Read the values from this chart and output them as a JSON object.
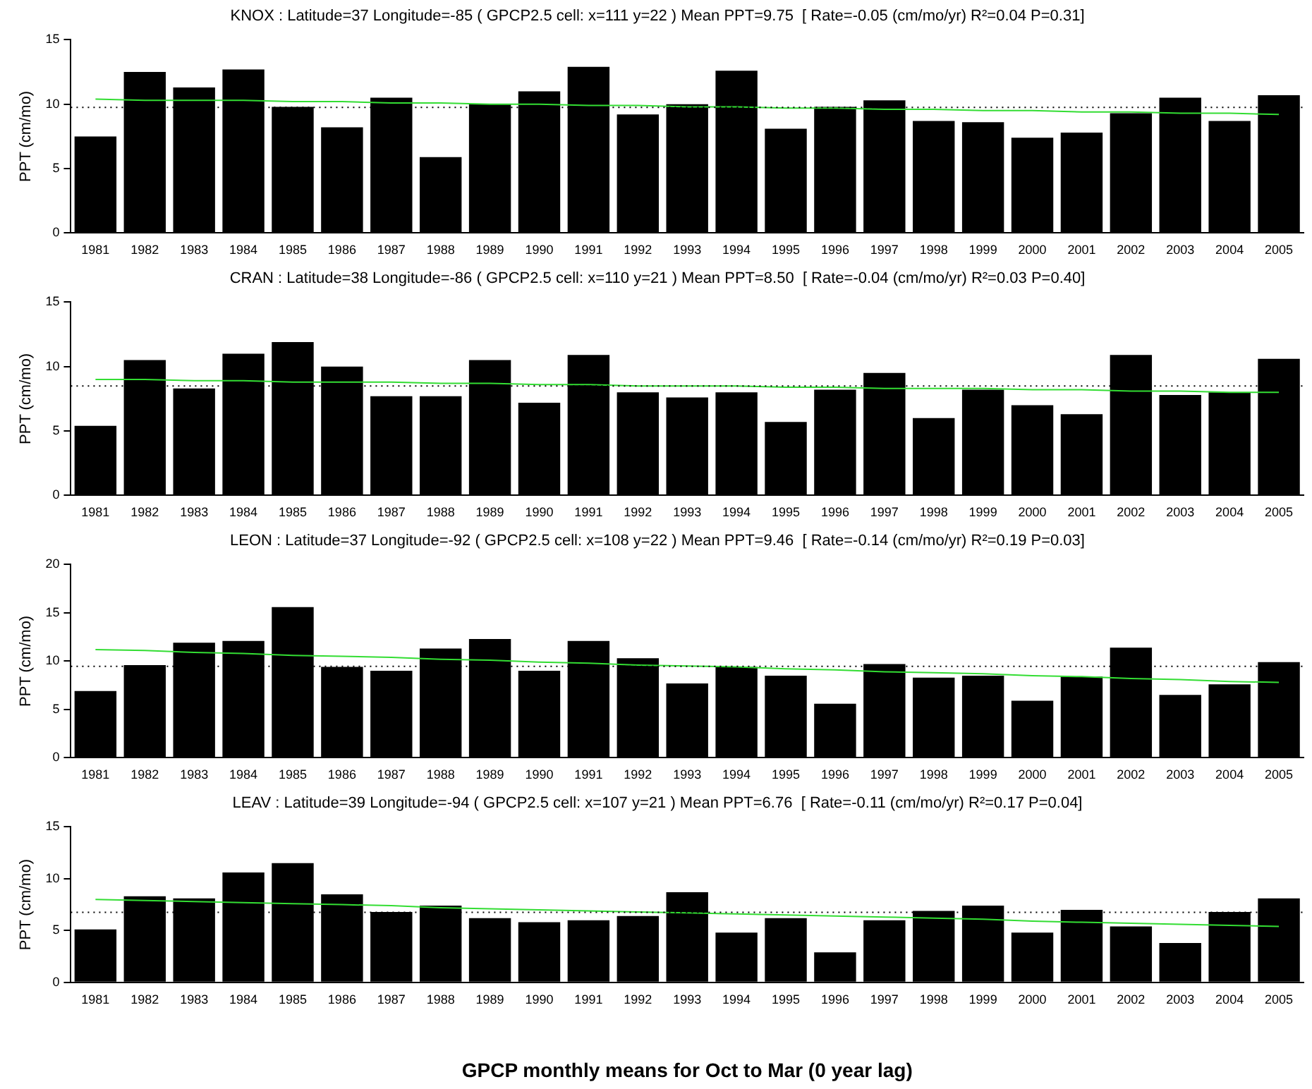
{
  "chart_data": [
    {
      "type": "bar",
      "title": "KNOX : Latitude=37 Longitude=-85 ( GPCP2.5 cell: x=111 y=22 ) Mean PPT=9.75  [ Rate=-0.05 (cm/mo/yr) R²=0.04 P=0.31]",
      "ylabel": "PPT (cm/mo)",
      "categories": [
        "1981",
        "1982",
        "1983",
        "1984",
        "1985",
        "1986",
        "1987",
        "1988",
        "1989",
        "1990",
        "1991",
        "1992",
        "1993",
        "1994",
        "1995",
        "1996",
        "1997",
        "1998",
        "1999",
        "2000",
        "2001",
        "2002",
        "2003",
        "2004",
        "2005"
      ],
      "series": [
        {
          "color": "#000000",
          "values": [
            7.5,
            12.5,
            11.3,
            12.7,
            9.8,
            8.2,
            10.5,
            5.9,
            10.0,
            11.0,
            12.9,
            9.2,
            10.0,
            12.6,
            8.1,
            9.8,
            10.3,
            8.7,
            8.6,
            7.4,
            7.8,
            9.3,
            10.5,
            8.7,
            10.7
          ]
        },
        {
          "type": "line",
          "color": "#33dd33",
          "values": [
            10.4,
            10.3,
            10.3,
            10.3,
            10.2,
            10.2,
            10.1,
            10.1,
            10.0,
            10.0,
            9.9,
            9.9,
            9.8,
            9.8,
            9.7,
            9.7,
            9.6,
            9.6,
            9.5,
            9.5,
            9.4,
            9.4,
            9.3,
            9.3,
            9.2
          ]
        }
      ],
      "ylim": [
        0,
        15
      ],
      "yticks": [
        0,
        5,
        10,
        15
      ],
      "marker": "none",
      "legend": false,
      "grid": false,
      "ref_lines": [
        {
          "axis": "y",
          "value": 9.75,
          "color": "#000000",
          "line_style": "dotted"
        }
      ]
    },
    {
      "type": "bar",
      "title": "CRAN : Latitude=38 Longitude=-86 ( GPCP2.5 cell: x=110 y=21 ) Mean PPT=8.50  [ Rate=-0.04 (cm/mo/yr) R²=0.03 P=0.40]",
      "ylabel": "PPT (cm/mo)",
      "categories": [
        "1981",
        "1982",
        "1983",
        "1984",
        "1985",
        "1986",
        "1987",
        "1988",
        "1989",
        "1990",
        "1991",
        "1992",
        "1993",
        "1994",
        "1995",
        "1996",
        "1997",
        "1998",
        "1999",
        "2000",
        "2001",
        "2002",
        "2003",
        "2004",
        "2005"
      ],
      "series": [
        {
          "color": "#000000",
          "values": [
            5.4,
            10.5,
            8.3,
            11.0,
            11.9,
            10.0,
            7.7,
            7.7,
            10.5,
            7.2,
            10.9,
            8.0,
            7.6,
            8.0,
            5.7,
            8.2,
            9.5,
            6.0,
            8.2,
            7.0,
            6.3,
            10.9,
            7.8,
            8.0,
            10.6
          ]
        },
        {
          "type": "line",
          "color": "#33dd33",
          "values": [
            9.0,
            9.0,
            8.9,
            8.9,
            8.8,
            8.8,
            8.8,
            8.7,
            8.7,
            8.6,
            8.6,
            8.5,
            8.5,
            8.5,
            8.4,
            8.4,
            8.3,
            8.3,
            8.3,
            8.2,
            8.2,
            8.1,
            8.1,
            8.0,
            8.0
          ]
        }
      ],
      "ylim": [
        0,
        15
      ],
      "yticks": [
        0,
        5,
        10,
        15
      ],
      "marker": "none",
      "legend": false,
      "grid": false,
      "ref_lines": [
        {
          "axis": "y",
          "value": 8.5,
          "color": "#000000",
          "line_style": "dotted"
        }
      ]
    },
    {
      "type": "bar",
      "title": "LEON : Latitude=37 Longitude=-92 ( GPCP2.5 cell: x=108 y=22 ) Mean PPT=9.46  [ Rate=-0.14 (cm/mo/yr) R²=0.19 P=0.03]",
      "ylabel": "PPT (cm/mo)",
      "categories": [
        "1981",
        "1982",
        "1983",
        "1984",
        "1985",
        "1986",
        "1987",
        "1988",
        "1989",
        "1990",
        "1991",
        "1992",
        "1993",
        "1994",
        "1995",
        "1996",
        "1997",
        "1998",
        "1999",
        "2000",
        "2001",
        "2002",
        "2003",
        "2004",
        "2005"
      ],
      "series": [
        {
          "color": "#000000",
          "values": [
            6.9,
            9.6,
            11.9,
            12.1,
            15.6,
            9.4,
            9.0,
            11.3,
            12.3,
            9.0,
            12.1,
            10.3,
            7.7,
            9.4,
            8.5,
            5.6,
            9.7,
            8.3,
            8.5,
            5.9,
            8.4,
            11.4,
            6.5,
            7.6,
            9.9
          ]
        },
        {
          "type": "line",
          "color": "#33dd33",
          "values": [
            11.2,
            11.1,
            10.9,
            10.8,
            10.6,
            10.5,
            10.4,
            10.2,
            10.1,
            9.9,
            9.8,
            9.6,
            9.5,
            9.4,
            9.2,
            9.1,
            8.9,
            8.8,
            8.7,
            8.5,
            8.4,
            8.2,
            8.1,
            7.9,
            7.8
          ]
        }
      ],
      "ylim": [
        0,
        20
      ],
      "yticks": [
        0,
        5,
        10,
        15,
        20
      ],
      "marker": "none",
      "legend": false,
      "grid": false,
      "ref_lines": [
        {
          "axis": "y",
          "value": 9.46,
          "color": "#000000",
          "line_style": "dotted"
        }
      ]
    },
    {
      "type": "bar",
      "title": "LEAV : Latitude=39 Longitude=-94 ( GPCP2.5 cell: x=107 y=21 ) Mean PPT=6.76  [ Rate=-0.11 (cm/mo/yr) R²=0.17 P=0.04]",
      "ylabel": "PPT (cm/mo)",
      "xlabel": "GPCP monthly means for Oct to Mar (0 year lag)",
      "categories": [
        "1981",
        "1982",
        "1983",
        "1984",
        "1985",
        "1986",
        "1987",
        "1988",
        "1989",
        "1990",
        "1991",
        "1992",
        "1993",
        "1994",
        "1995",
        "1996",
        "1997",
        "1998",
        "1999",
        "2000",
        "2001",
        "2002",
        "2003",
        "2004",
        "2005"
      ],
      "series": [
        {
          "color": "#000000",
          "values": [
            5.1,
            8.3,
            8.1,
            10.6,
            11.5,
            8.5,
            6.8,
            7.4,
            6.2,
            5.8,
            6.0,
            6.4,
            8.7,
            4.8,
            6.2,
            2.9,
            6.0,
            6.9,
            7.4,
            4.8,
            7.0,
            5.4,
            3.8,
            6.8,
            8.1
          ]
        },
        {
          "type": "line",
          "color": "#33dd33",
          "values": [
            8.0,
            7.9,
            7.8,
            7.7,
            7.6,
            7.5,
            7.4,
            7.2,
            7.1,
            7.0,
            6.9,
            6.8,
            6.7,
            6.6,
            6.5,
            6.4,
            6.3,
            6.2,
            6.1,
            5.9,
            5.8,
            5.7,
            5.6,
            5.5,
            5.4
          ]
        }
      ],
      "ylim": [
        0,
        15
      ],
      "yticks": [
        0,
        5,
        10,
        15
      ],
      "marker": "none",
      "legend": false,
      "grid": false,
      "ref_lines": [
        {
          "axis": "y",
          "value": 6.76,
          "color": "#000000",
          "line_style": "dotted"
        }
      ]
    }
  ]
}
